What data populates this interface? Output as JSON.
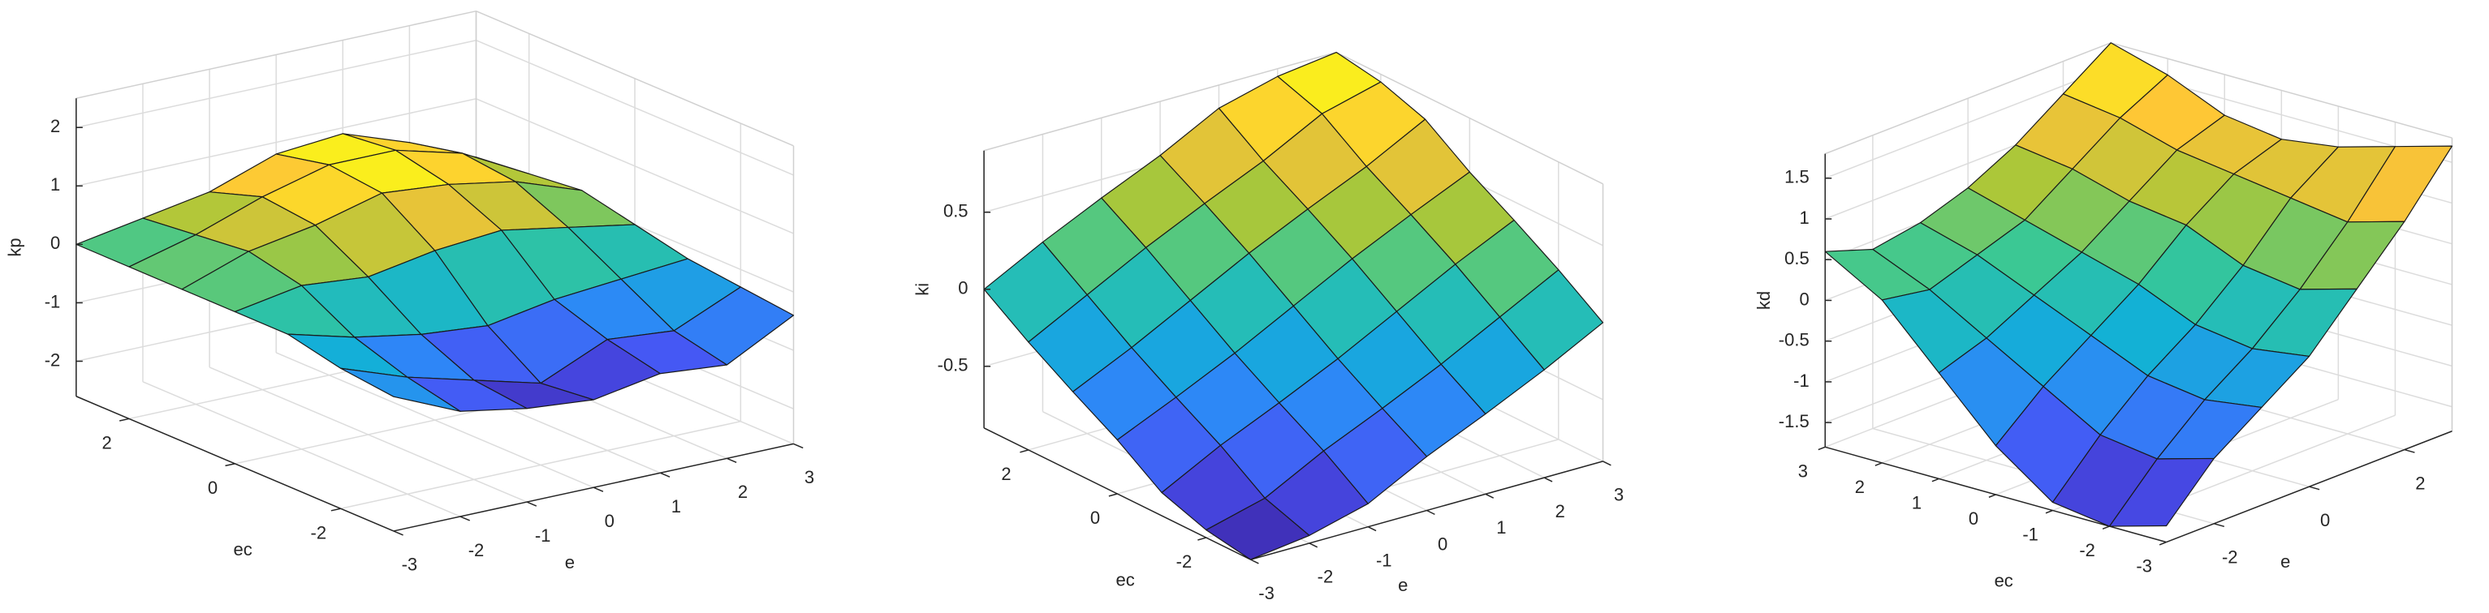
{
  "chart_data": [
    {
      "type": "surface",
      "colormap": "parula",
      "xlabel": "e",
      "ylabel": "ec",
      "zlabel": "kp",
      "x": [
        -3,
        -2,
        -1,
        0,
        1,
        2,
        3
      ],
      "y": [
        -3,
        -2,
        -1,
        0,
        1,
        2,
        3
      ],
      "z": [
        [
          -0.3,
          -0.8,
          -1.0,
          -1.1,
          -0.9,
          -1.0,
          -0.4
        ],
        [
          -0.2,
          -0.6,
          -0.9,
          -1.2,
          -0.7,
          -0.8,
          -0.3
        ],
        [
          0,
          -0.3,
          -0.5,
          -0.6,
          -0.4,
          -0.3,
          -0.2
        ],
        [
          0,
          0.2,
          0.1,
          0.3,
          0.4,
          0.2,
          0
        ],
        [
          0,
          0.4,
          0.6,
          0.9,
          0.8,
          0.6,
          0.2
        ],
        [
          0,
          0.3,
          0.7,
          1.0,
          1.0,
          0.7,
          0.1
        ],
        [
          0,
          0.2,
          0.4,
          0.8,
          0.9,
          0.5,
          0
        ]
      ],
      "xlim": [
        -3,
        3
      ],
      "ylim": [
        -3,
        3
      ],
      "zlim": [
        -2.6,
        2.5
      ],
      "xticks": [
        -3,
        -2,
        -1,
        0,
        1,
        2,
        3
      ],
      "yticks": [
        -2,
        0,
        2
      ],
      "zticks": [
        -2,
        -1,
        0,
        1,
        2
      ],
      "grid": true
    },
    {
      "type": "surface",
      "colormap": "parula",
      "xlabel": "e",
      "ylabel": "ec",
      "zlabel": "ki",
      "x": [
        -3,
        -2,
        -1,
        0,
        1,
        2,
        3
      ],
      "y": [
        -3,
        -2,
        -1,
        0,
        1,
        2,
        3
      ],
      "z": [
        [
          -0.9,
          -0.85,
          -0.75,
          -0.55,
          -0.38,
          -0.2,
          0
        ],
        [
          -0.85,
          -0.75,
          -0.55,
          -0.38,
          -0.2,
          0,
          0.2
        ],
        [
          -0.75,
          -0.55,
          -0.38,
          -0.2,
          0,
          0.2,
          0.38
        ],
        [
          -0.55,
          -0.38,
          -0.2,
          0,
          0.2,
          0.38,
          0.55
        ],
        [
          -0.38,
          -0.2,
          0,
          0.2,
          0.38,
          0.55,
          0.75
        ],
        [
          -0.2,
          0,
          0.2,
          0.38,
          0.55,
          0.75,
          0.85
        ],
        [
          0,
          0.2,
          0.38,
          0.55,
          0.75,
          0.85,
          0.9
        ]
      ],
      "xlim": [
        -3,
        3
      ],
      "ylim": [
        -3,
        3
      ],
      "zlim": [
        -0.9,
        0.9
      ],
      "xticks": [
        -3,
        -2,
        -1,
        0,
        1,
        2,
        3
      ],
      "yticks": [
        -2,
        0,
        2
      ],
      "zticks": [
        -0.5,
        0,
        0.5
      ],
      "grid": true
    },
    {
      "type": "surface",
      "colormap": "parula",
      "xlabel": "e",
      "ylabel": "ec",
      "zlabel": "kd",
      "x": [
        -3,
        -2,
        -1,
        0,
        1,
        2,
        3
      ],
      "y": [
        -3,
        -2,
        -1,
        0,
        1,
        2,
        3
      ],
      "z": [
        [
          -1.6,
          -1.0,
          -0.6,
          -0.2,
          0.4,
          1.0,
          1.7
        ],
        [
          -1.8,
          -1.2,
          -0.7,
          -0.3,
          0.2,
          0.8,
          1.5
        ],
        [
          -1.7,
          -1.1,
          -0.6,
          -0.2,
          0.3,
          0.9,
          1.3
        ],
        [
          -1.2,
          -0.7,
          -0.3,
          0.1,
          0.6,
          1.0,
          1.2
        ],
        [
          -0.5,
          -0.3,
          0,
          0.3,
          0.7,
          1.1,
          1.3
        ],
        [
          0.2,
          0.1,
          0.3,
          0.5,
          0.9,
          1.3,
          1.6
        ],
        [
          0.6,
          0.4,
          0.5,
          0.7,
          1.0,
          1.4,
          1.8
        ]
      ],
      "xlim": [
        -3,
        3
      ],
      "ylim": [
        -3,
        3
      ],
      "zlim": [
        -1.8,
        1.8
      ],
      "xticks": [
        -2,
        0,
        2
      ],
      "yticks": [
        -3,
        -2,
        -1,
        0,
        1,
        2,
        3
      ],
      "zticks": [
        -1.5,
        -1,
        -0.5,
        0,
        0.5,
        1,
        1.5
      ],
      "grid": true
    }
  ]
}
